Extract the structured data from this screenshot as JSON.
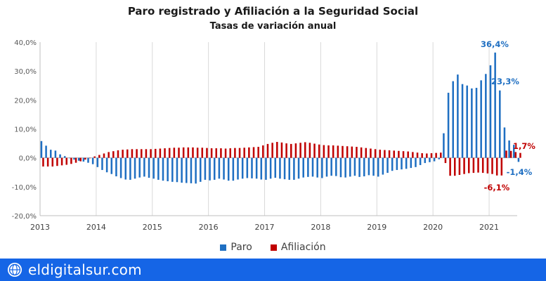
{
  "title": "Paro registrado y Afiliación a la Seguridad Social",
  "subtitle": "Tasas de variación anual",
  "legend": [
    {
      "label": "Paro",
      "color": "#1f6fc2"
    },
    {
      "label": "Afiliación",
      "color": "#c00000"
    }
  ],
  "footer": {
    "text": "eldigitalsur.com",
    "icon": "globe-logo-icon",
    "background": "#1565e6"
  },
  "chart_data": {
    "type": "bar",
    "title": "Paro registrado y Afiliación a la Seguridad Social",
    "subtitle": "Tasas de variación anual",
    "ylim": [
      -20,
      40
    ],
    "yticks": [
      "-20,0%",
      "-10,0%",
      "0,0%",
      "10,0%",
      "20,0%",
      "30,0%",
      "40,0%"
    ],
    "xticks": [
      "2013",
      "2014",
      "2015",
      "2016",
      "2017",
      "2018",
      "2019",
      "2020",
      "2021"
    ],
    "grid": "vertical lines at each year",
    "legend_position": "bottom",
    "period": "monthly, Jan 2013 – Jul 2021",
    "series": [
      {
        "name": "Paro",
        "color": "#1f6fc2",
        "values": [
          5.8,
          4.2,
          2.8,
          2.5,
          1.2,
          0.6,
          0.0,
          -0.6,
          -1.0,
          -1.3,
          -1.7,
          -2.2,
          -3.2,
          -4.2,
          -5.0,
          -5.6,
          -6.4,
          -7.0,
          -7.5,
          -7.6,
          -7.2,
          -6.8,
          -6.5,
          -6.9,
          -7.2,
          -7.6,
          -7.9,
          -8.1,
          -8.3,
          -8.4,
          -8.6,
          -8.7,
          -8.8,
          -8.9,
          -8.3,
          -7.6,
          -7.8,
          -7.6,
          -7.2,
          -7.5,
          -7.9,
          -7.9,
          -7.5,
          -7.2,
          -7.0,
          -7.1,
          -7.2,
          -7.5,
          -7.6,
          -7.2,
          -6.9,
          -7.2,
          -7.4,
          -7.6,
          -7.6,
          -7.2,
          -6.8,
          -6.6,
          -6.5,
          -6.8,
          -7.0,
          -6.5,
          -6.2,
          -6.3,
          -6.7,
          -6.8,
          -6.5,
          -6.2,
          -6.6,
          -6.4,
          -6.0,
          -6.2,
          -6.5,
          -5.8,
          -5.2,
          -4.5,
          -4.2,
          -4.0,
          -3.8,
          -3.5,
          -3.2,
          -2.5,
          -1.8,
          -1.5,
          -1.2,
          -0.5,
          8.5,
          22.5,
          26.5,
          28.8,
          25.5,
          25.0,
          24.0,
          24.2,
          26.8,
          29.0,
          32.0,
          36.4,
          23.3,
          10.5,
          6.0,
          4.5,
          -1.4
        ],
        "annotations": [
          {
            "label": "36,4%",
            "value": 36.4
          },
          {
            "label": "23,3%",
            "value": 23.3
          },
          {
            "label": "-1,4%",
            "value": -1.4
          }
        ]
      },
      {
        "name": "Afiliación",
        "color": "#c00000",
        "values": [
          -3.0,
          -3.0,
          -3.0,
          -2.8,
          -2.6,
          -2.4,
          -2.1,
          -1.7,
          -1.2,
          -0.6,
          0.0,
          0.5,
          1.0,
          1.5,
          2.0,
          2.3,
          2.6,
          2.8,
          2.9,
          3.0,
          3.0,
          3.0,
          3.0,
          3.0,
          3.1,
          3.2,
          3.3,
          3.4,
          3.5,
          3.5,
          3.6,
          3.6,
          3.6,
          3.5,
          3.5,
          3.4,
          3.3,
          3.3,
          3.3,
          3.2,
          3.3,
          3.4,
          3.4,
          3.5,
          3.6,
          3.7,
          3.8,
          4.3,
          4.8,
          5.2,
          5.5,
          5.3,
          5.0,
          4.8,
          5.0,
          5.2,
          5.4,
          5.2,
          4.9,
          4.6,
          4.4,
          4.3,
          4.3,
          4.2,
          4.1,
          4.0,
          3.9,
          3.8,
          3.6,
          3.4,
          3.2,
          3.0,
          2.8,
          2.7,
          2.6,
          2.5,
          2.4,
          2.3,
          2.2,
          2.0,
          1.8,
          1.6,
          1.5,
          1.6,
          1.7,
          1.8,
          -1.8,
          -6.2,
          -6.2,
          -5.9,
          -5.6,
          -5.3,
          -5.2,
          -5.1,
          -5.2,
          -5.4,
          -5.6,
          -6.1,
          -6.1,
          2.5,
          2.4,
          2.0,
          1.7
        ],
        "annotations": [
          {
            "label": "-6,1%",
            "value": -6.1
          },
          {
            "label": "1,7%",
            "value": 1.7
          }
        ]
      }
    ]
  }
}
